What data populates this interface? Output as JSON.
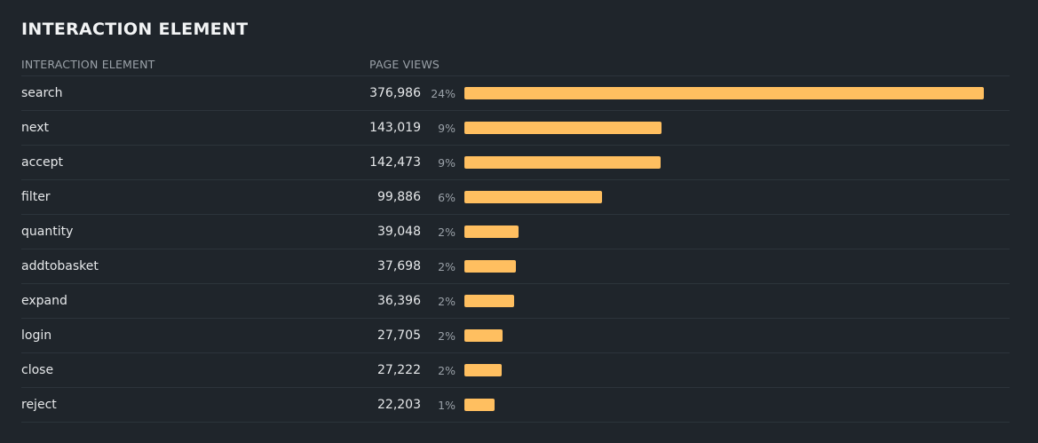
{
  "chart_data": {
    "type": "bar",
    "title": "INTERACTION ELEMENT",
    "columns": [
      "INTERACTION ELEMENT",
      "PAGE VIEWS"
    ],
    "categories": [
      "search",
      "next",
      "accept",
      "filter",
      "quantity",
      "addtobasket",
      "expand",
      "login",
      "close",
      "reject"
    ],
    "values": [
      376986,
      143019,
      142473,
      99886,
      39048,
      37698,
      36396,
      27705,
      27222,
      22203
    ],
    "value_labels": [
      "376,986",
      "143,019",
      "142,473",
      "99,886",
      "39,048",
      "37,698",
      "36,396",
      "27,705",
      "27,222",
      "22,203"
    ],
    "percent_labels": [
      "24%",
      "9%",
      "9%",
      "6%",
      "2%",
      "2%",
      "2%",
      "2%",
      "2%",
      "1%"
    ],
    "bar_color": "#ffbf60",
    "background": "#1f252b"
  }
}
